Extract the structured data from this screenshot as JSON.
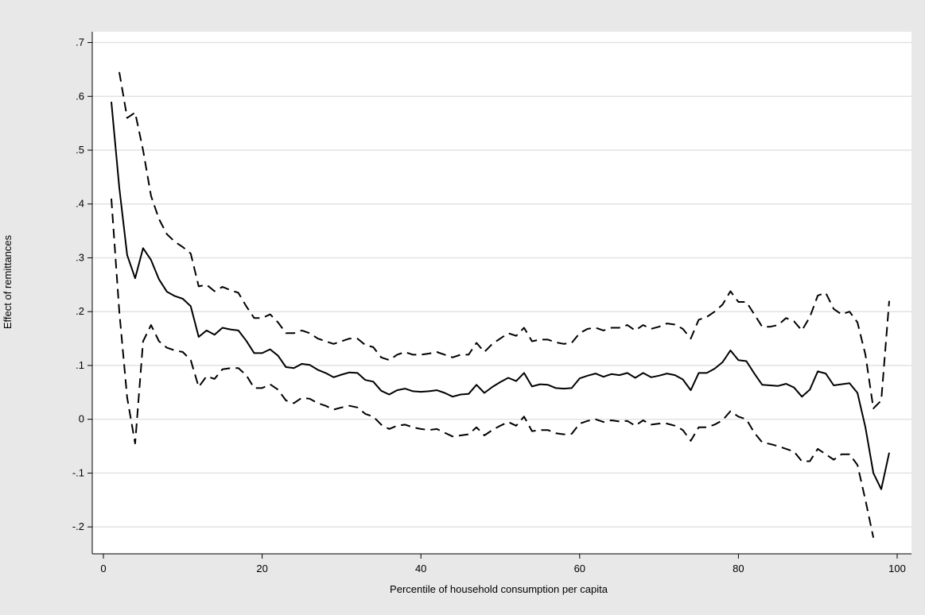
{
  "chart_data": {
    "type": "line",
    "title": "",
    "xlabel": "Percentile of household consumption per capita",
    "ylabel": "Effect of remittances",
    "xlim": [
      0,
      100
    ],
    "ylim": [
      -0.25,
      0.72
    ],
    "x_ticks": [
      0,
      20,
      40,
      60,
      80,
      100
    ],
    "x_tick_labels": [
      "0",
      "20",
      "40",
      "60",
      "80",
      "100"
    ],
    "y_ticks": [
      -0.2,
      -0.1,
      0,
      0.1,
      0.2,
      0.3,
      0.4,
      0.5,
      0.6,
      0.7
    ],
    "y_tick_labels": [
      "-.2",
      "-.1",
      "0",
      ".1",
      ".2",
      ".3",
      ".4",
      ".5",
      ".6",
      ".7"
    ],
    "grid": true,
    "legend": "none",
    "colors": {
      "page_background": "#e8e8e8",
      "plot_background": "#ffffff",
      "grid": "#e2e2e2",
      "line": "#000000"
    },
    "series": [
      {
        "style": "solid",
        "values": [
          0.59,
          0.43,
          0.305,
          0.262,
          0.318,
          0.296,
          0.26,
          0.237,
          0.229,
          0.224,
          0.21,
          0.153,
          0.165,
          0.157,
          0.17,
          0.167,
          0.165,
          0.146,
          0.123,
          0.123,
          0.13,
          0.118,
          0.097,
          0.095,
          0.103,
          0.101,
          0.092,
          0.086,
          0.078,
          0.083,
          0.087,
          0.086,
          0.073,
          0.07,
          0.053,
          0.046,
          0.054,
          0.057,
          0.052,
          0.051,
          0.052,
          0.054,
          0.049,
          0.042,
          0.046,
          0.047,
          0.064,
          0.049,
          0.06,
          0.069,
          0.077,
          0.071,
          0.086,
          0.061,
          0.065,
          0.064,
          0.058,
          0.057,
          0.058,
          0.076,
          0.081,
          0.085,
          0.079,
          0.084,
          0.082,
          0.086,
          0.077,
          0.086,
          0.078,
          0.081,
          0.085,
          0.082,
          0.074,
          0.054,
          0.086,
          0.086,
          0.094,
          0.106,
          0.128,
          0.11,
          0.108,
          0.085,
          0.064,
          0.063,
          0.062,
          0.066,
          0.059,
          0.042,
          0.055,
          0.089,
          0.085,
          0.063,
          0.065,
          0.067,
          0.049,
          -0.015,
          -0.1,
          -0.13,
          -0.062
        ]
      },
      {
        "style": "dashed",
        "values": [
          null,
          0.645,
          0.56,
          0.57,
          0.5,
          0.415,
          0.372,
          0.344,
          0.33,
          0.32,
          0.308,
          0.247,
          0.25,
          0.238,
          0.246,
          0.24,
          0.235,
          0.21,
          0.188,
          0.188,
          0.195,
          0.18,
          0.16,
          0.16,
          0.165,
          0.16,
          0.15,
          0.145,
          0.14,
          0.145,
          0.15,
          0.15,
          0.138,
          0.134,
          0.115,
          0.11,
          0.12,
          0.125,
          0.12,
          0.12,
          0.122,
          0.125,
          0.12,
          0.115,
          0.12,
          0.12,
          0.142,
          0.125,
          0.14,
          0.15,
          0.16,
          0.155,
          0.17,
          0.145,
          0.148,
          0.148,
          0.143,
          0.14,
          0.142,
          0.16,
          0.168,
          0.17,
          0.165,
          0.17,
          0.17,
          0.175,
          0.165,
          0.175,
          0.168,
          0.172,
          0.178,
          0.176,
          0.168,
          0.15,
          0.185,
          0.19,
          0.2,
          0.213,
          0.238,
          0.218,
          0.218,
          0.195,
          0.172,
          0.172,
          0.175,
          0.188,
          0.182,
          0.165,
          0.19,
          0.23,
          0.235,
          0.205,
          0.195,
          0.2,
          0.18,
          0.12,
          0.02,
          0.035,
          0.22
        ]
      },
      {
        "style": "dashed",
        "values": [
          0.41,
          0.2,
          0.04,
          -0.045,
          0.145,
          0.175,
          0.145,
          0.133,
          0.128,
          0.125,
          0.11,
          0.06,
          0.08,
          0.075,
          0.093,
          0.095,
          0.095,
          0.082,
          0.058,
          0.058,
          0.065,
          0.055,
          0.035,
          0.03,
          0.04,
          0.038,
          0.03,
          0.025,
          0.018,
          0.022,
          0.025,
          0.022,
          0.01,
          0.005,
          -0.01,
          -0.018,
          -0.012,
          -0.01,
          -0.015,
          -0.018,
          -0.02,
          -0.018,
          -0.025,
          -0.032,
          -0.03,
          -0.028,
          -0.015,
          -0.03,
          -0.02,
          -0.012,
          -0.005,
          -0.012,
          0.005,
          -0.022,
          -0.02,
          -0.02,
          -0.026,
          -0.028,
          -0.027,
          -0.008,
          -0.003,
          0.0,
          -0.005,
          -0.002,
          -0.004,
          -0.003,
          -0.012,
          -0.002,
          -0.01,
          -0.008,
          -0.008,
          -0.012,
          -0.02,
          -0.04,
          -0.015,
          -0.015,
          -0.01,
          -0.002,
          0.015,
          0.005,
          0.0,
          -0.025,
          -0.043,
          -0.046,
          -0.05,
          -0.055,
          -0.06,
          -0.078,
          -0.078,
          -0.055,
          -0.065,
          -0.075,
          -0.065,
          -0.065,
          -0.085,
          -0.15,
          -0.22,
          null,
          null
        ]
      }
    ]
  }
}
